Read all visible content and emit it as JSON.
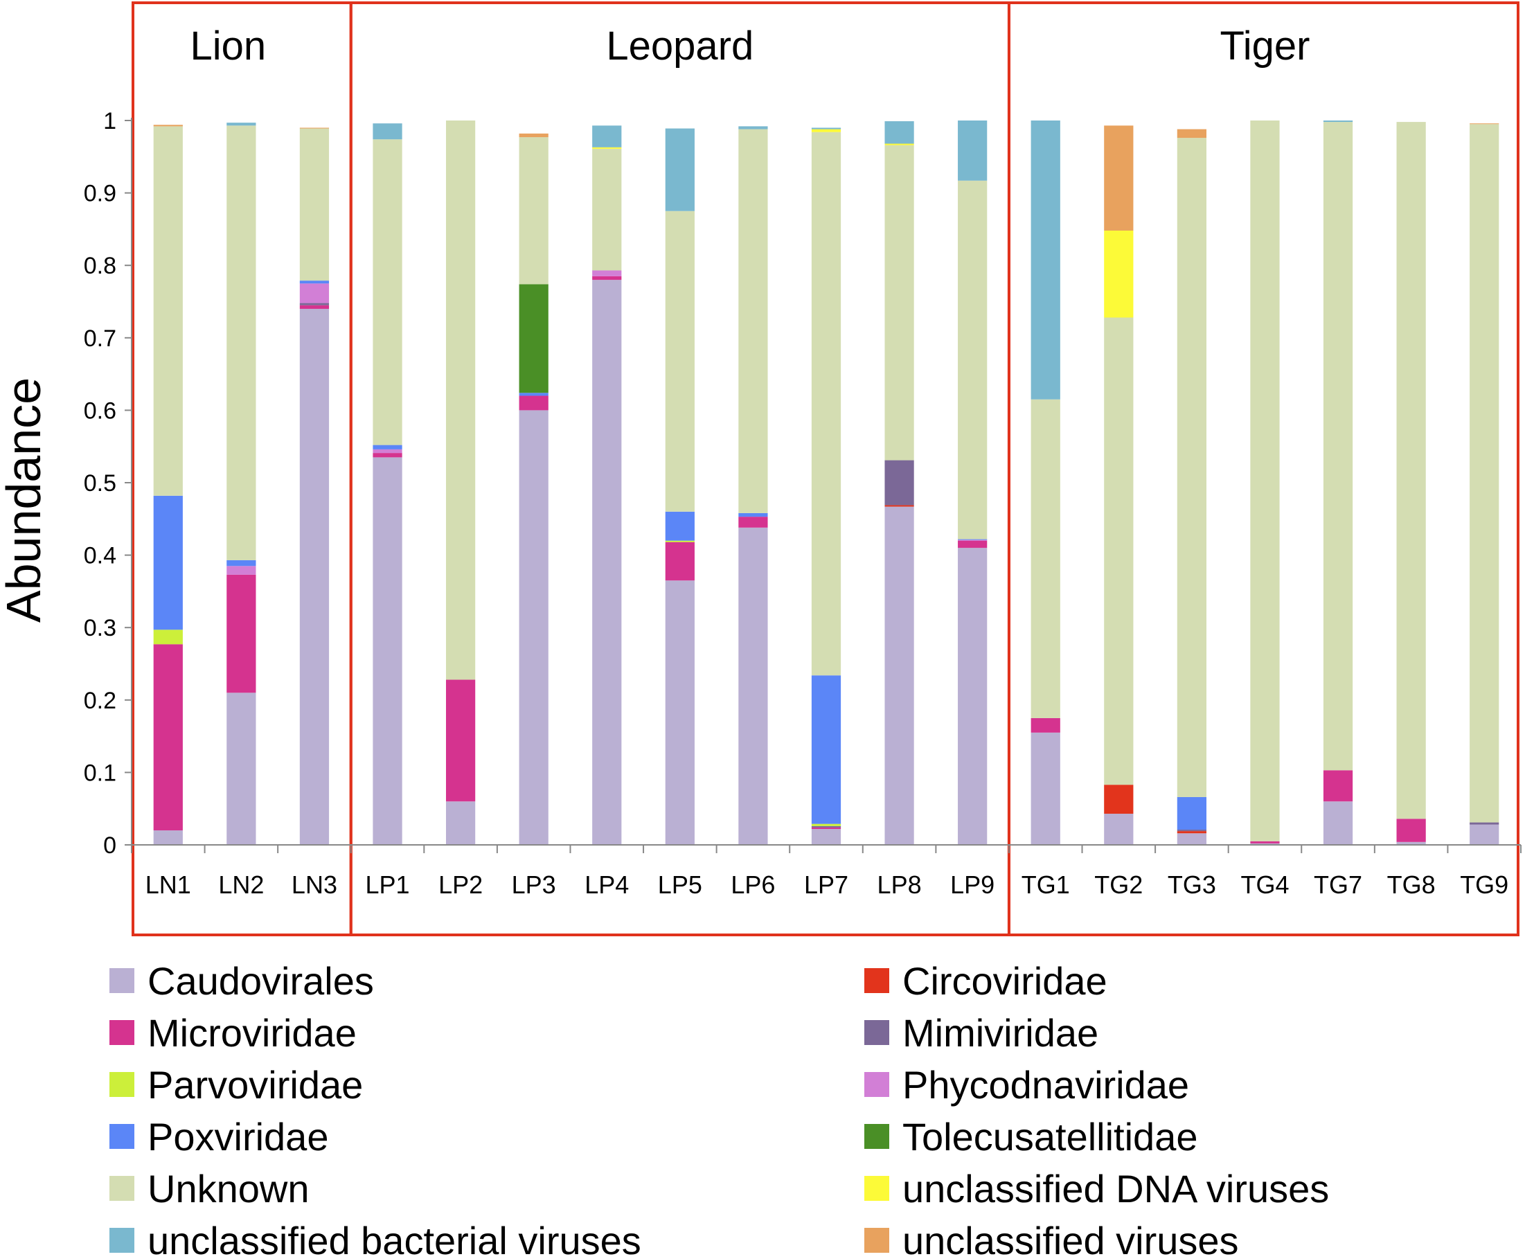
{
  "chart_data": {
    "type": "bar",
    "stacked": true,
    "ylabel": "Abundance",
    "xlabel": "",
    "ylim": [
      0,
      1
    ],
    "yticks": [
      "0",
      "0.1",
      "0.2",
      "0.3",
      "0.4",
      "0.5",
      "0.6",
      "0.7",
      "0.8",
      "0.9",
      "1"
    ],
    "groups": [
      {
        "label": "Lion",
        "categories": [
          "LN1",
          "LN2",
          "LN3"
        ]
      },
      {
        "label": "Leopard",
        "categories": [
          "LP1",
          "LP2",
          "LP3",
          "LP4",
          "LP5",
          "LP6",
          "LP7",
          "LP8",
          "LP9"
        ]
      },
      {
        "label": "Tiger",
        "categories": [
          "TG1",
          "TG2",
          "TG3",
          "TG4",
          "TG7",
          "TG8",
          "TG9"
        ]
      }
    ],
    "categories": [
      "LN1",
      "LN2",
      "LN3",
      "LP1",
      "LP2",
      "LP3",
      "LP4",
      "LP5",
      "LP6",
      "LP7",
      "LP8",
      "LP9",
      "TG1",
      "TG2",
      "TG3",
      "TG4",
      "TG7",
      "TG8",
      "TG9"
    ],
    "series": [
      {
        "name": "Caudovirales",
        "color": "#bab0d3",
        "values": [
          0.02,
          0.21,
          0.74,
          0.535,
          0.06,
          0.6,
          0.78,
          0.365,
          0.438,
          0.022,
          0.467,
          0.41,
          0.155,
          0.043,
          0.016,
          0.002,
          0.06,
          0.004,
          0.028
        ]
      },
      {
        "name": "Circoviridae",
        "color": "#e2341c",
        "values": [
          0,
          0,
          0,
          0,
          0,
          0,
          0,
          0,
          0,
          0,
          0.002,
          0,
          0,
          0.04,
          0.003,
          0,
          0,
          0,
          0
        ]
      },
      {
        "name": "Microviridae",
        "color": "#d5338f",
        "values": [
          0.257,
          0.163,
          0.005,
          0.006,
          0.168,
          0.02,
          0.005,
          0.053,
          0.015,
          0.002,
          0,
          0.01,
          0.02,
          0,
          0,
          0.003,
          0.043,
          0.032,
          0
        ]
      },
      {
        "name": "Mimiviridae",
        "color": "#7b6897",
        "values": [
          0,
          0,
          0.003,
          0,
          0,
          0,
          0,
          0,
          0,
          0.002,
          0.062,
          0,
          0,
          0,
          0.002,
          0,
          0,
          0,
          0.003
        ]
      },
      {
        "name": "Parvoviridae",
        "color": "#ccef3a",
        "values": [
          0.02,
          0,
          0,
          0,
          0,
          0,
          0,
          0.002,
          0,
          0.003,
          0,
          0,
          0,
          0,
          0,
          0,
          0,
          0,
          0
        ]
      },
      {
        "name": "Phycodnaviridae",
        "color": "#d27fd6",
        "values": [
          0,
          0.012,
          0.027,
          0.005,
          0,
          0,
          0.008,
          0,
          0,
          0,
          0,
          0.001,
          0,
          0,
          0,
          0,
          0,
          0,
          0
        ]
      },
      {
        "name": "Poxviridae",
        "color": "#5b86f7",
        "values": [
          0.185,
          0.008,
          0.004,
          0.006,
          0,
          0.004,
          0,
          0.04,
          0.005,
          0.205,
          0,
          0.001,
          0,
          0,
          0.045,
          0,
          0,
          0,
          0
        ]
      },
      {
        "name": "Tolecusatellitidae",
        "color": "#4a8f26",
        "values": [
          0,
          0,
          0,
          0,
          0,
          0.15,
          0,
          0,
          0,
          0,
          0,
          0,
          0,
          0,
          0,
          0,
          0,
          0,
          0
        ]
      },
      {
        "name": "Unknown",
        "color": "#d4ddb2",
        "values": [
          0.51,
          0.6,
          0.21,
          0.422,
          0.772,
          0.203,
          0.168,
          0.415,
          0.53,
          0.75,
          0.435,
          0.495,
          0.44,
          0.645,
          0.91,
          0.995,
          0.895,
          0.962,
          0.964
        ]
      },
      {
        "name": "unclassified DNA viruses",
        "color": "#fcfa38",
        "values": [
          0,
          0,
          0,
          0,
          0,
          0,
          0.002,
          0,
          0,
          0.004,
          0.002,
          0,
          0,
          0.12,
          0,
          0,
          0,
          0,
          0
        ]
      },
      {
        "name": "unclassified bacterial viruses",
        "color": "#7ab8cf",
        "values": [
          0,
          0.004,
          0,
          0.022,
          0,
          0,
          0.03,
          0.114,
          0.004,
          0.002,
          0.031,
          0.083,
          0.385,
          0,
          0,
          0,
          0.002,
          0,
          0
        ]
      },
      {
        "name": "unclassified viruses",
        "color": "#e8a25e",
        "values": [
          0.002,
          0,
          0.001,
          0,
          0,
          0.005,
          0,
          0,
          0,
          0,
          0,
          0,
          0,
          0.145,
          0.012,
          0,
          0,
          0,
          0.001
        ]
      }
    ],
    "legend": {
      "placement": "bottom",
      "left_column": [
        "Caudovirales",
        "Microviridae",
        "Parvoviridae",
        "Poxviridae",
        "Unknown",
        "unclassified bacterial viruses"
      ],
      "right_column": [
        "Circoviridae",
        "Mimiviridae",
        "Phycodnaviridae",
        "Tolecusatellitidae",
        "unclassified DNA viruses",
        "unclassified viruses"
      ]
    },
    "group_box_color": "#e0321c"
  }
}
